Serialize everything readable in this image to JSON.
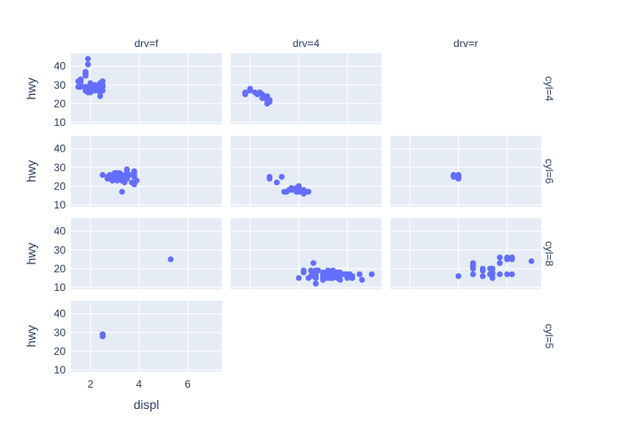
{
  "chart_data": {
    "type": "scatter",
    "xlabel": "displ",
    "ylabel": "hwy",
    "xlim": [
      1.2,
      7.4
    ],
    "ylim": [
      9,
      47
    ],
    "x_ticks": [
      2,
      4,
      6
    ],
    "y_ticks": [
      10,
      20,
      30,
      40
    ],
    "grid": true,
    "marker_color": "#636efa",
    "plot_bg": "#e5ecf6",
    "columns": [
      "drv=f",
      "drv=4",
      "drv=r"
    ],
    "rows": [
      "cyl=4",
      "cyl=6",
      "cyl=8",
      "cyl=5"
    ],
    "panels": [
      {
        "row": 0,
        "col": 0,
        "points": [
          [
            1.8,
            29
          ],
          [
            1.8,
            29
          ],
          [
            2.0,
            31
          ],
          [
            2.0,
            30
          ],
          [
            1.9,
            44
          ],
          [
            1.9,
            41
          ],
          [
            2.0,
            29
          ],
          [
            2.0,
            26
          ],
          [
            2.2,
            27
          ],
          [
            2.4,
            30
          ],
          [
            2.5,
            29
          ],
          [
            2.4,
            24
          ],
          [
            1.6,
            33
          ],
          [
            1.6,
            32
          ],
          [
            1.8,
            36
          ],
          [
            1.8,
            35
          ],
          [
            1.8,
            37
          ],
          [
            1.6,
            30
          ],
          [
            1.6,
            29
          ],
          [
            1.8,
            27
          ],
          [
            2.0,
            28
          ],
          [
            2.2,
            30
          ],
          [
            2.4,
            26
          ],
          [
            2.5,
            27
          ],
          [
            2.4,
            31
          ],
          [
            2.5,
            32
          ],
          [
            1.5,
            32
          ],
          [
            1.5,
            29
          ],
          [
            1.9,
            26
          ],
          [
            2.0,
            27
          ],
          [
            2.2,
            29
          ],
          [
            2.3,
            28
          ],
          [
            2.4,
            28
          ],
          [
            2.5,
            29
          ],
          [
            2.5,
            30
          ],
          [
            2.0,
            30
          ]
        ]
      },
      {
        "row": 0,
        "col": 1,
        "points": [
          [
            1.8,
            26
          ],
          [
            1.8,
            25
          ],
          [
            2.0,
            28
          ],
          [
            2.0,
            27
          ],
          [
            2.2,
            26
          ],
          [
            2.4,
            26
          ],
          [
            2.5,
            25
          ],
          [
            2.7,
            24
          ],
          [
            2.7,
            22
          ],
          [
            2.7,
            20
          ],
          [
            2.8,
            21
          ],
          [
            2.8,
            22
          ],
          [
            2.5,
            23
          ],
          [
            2.3,
            25
          ]
        ]
      },
      {
        "row": 0,
        "col": 2,
        "points": []
      },
      {
        "row": 1,
        "col": 0,
        "points": [
          [
            2.8,
            26
          ],
          [
            2.8,
            25
          ],
          [
            3.1,
            27
          ],
          [
            3.3,
            26
          ],
          [
            3.3,
            24
          ],
          [
            3.5,
            26
          ],
          [
            3.6,
            26
          ],
          [
            3.8,
            26
          ],
          [
            3.8,
            28
          ],
          [
            3.8,
            25
          ],
          [
            3.3,
            17
          ],
          [
            3.5,
            29
          ],
          [
            3.3,
            23
          ],
          [
            3.4,
            22
          ],
          [
            3.0,
            26
          ],
          [
            2.5,
            26
          ],
          [
            3.0,
            25
          ],
          [
            3.1,
            26
          ],
          [
            3.5,
            28
          ],
          [
            3.8,
            27
          ],
          [
            3.9,
            23
          ],
          [
            3.1,
            23
          ],
          [
            2.7,
            24
          ],
          [
            2.9,
            23
          ],
          [
            3.0,
            27
          ],
          [
            3.2,
            27
          ],
          [
            3.4,
            25
          ],
          [
            3.5,
            24
          ],
          [
            3.7,
            22
          ],
          [
            3.8,
            21
          ],
          [
            2.7,
            25
          ],
          [
            3.1,
            24
          ],
          [
            3.3,
            25
          ]
        ]
      },
      {
        "row": 1,
        "col": 1,
        "points": [
          [
            2.8,
            25
          ],
          [
            2.8,
            24
          ],
          [
            3.1,
            22
          ],
          [
            3.3,
            25
          ],
          [
            3.7,
            19
          ],
          [
            3.7,
            18
          ],
          [
            3.9,
            17
          ],
          [
            4.0,
            17
          ],
          [
            4.0,
            20
          ],
          [
            4.2,
            18
          ],
          [
            4.3,
            17
          ],
          [
            4.4,
            17
          ],
          [
            3.4,
            17
          ],
          [
            3.6,
            18
          ],
          [
            4.0,
            19
          ],
          [
            4.2,
            16
          ],
          [
            4.0,
            18
          ],
          [
            3.9,
            19
          ],
          [
            3.5,
            17
          ],
          [
            4.0,
            20
          ]
        ]
      },
      {
        "row": 1,
        "col": 2,
        "points": [
          [
            3.8,
            26
          ],
          [
            3.8,
            25
          ],
          [
            4.0,
            26
          ],
          [
            4.0,
            25
          ],
          [
            4.0,
            24
          ],
          [
            3.9,
            25
          ]
        ]
      },
      {
        "row": 2,
        "col": 0,
        "points": [
          [
            5.3,
            25
          ]
        ]
      },
      {
        "row": 2,
        "col": 1,
        "points": [
          [
            4.6,
            23
          ],
          [
            4.5,
            19
          ],
          [
            4.7,
            18
          ],
          [
            4.7,
            19
          ],
          [
            5.2,
            17
          ],
          [
            5.2,
            15
          ],
          [
            5.7,
            17
          ],
          [
            5.9,
            17
          ],
          [
            4.7,
            16
          ],
          [
            4.7,
            17
          ],
          [
            5.3,
            16
          ],
          [
            5.3,
            17
          ],
          [
            5.4,
            15
          ],
          [
            5.4,
            17
          ],
          [
            4.6,
            17
          ],
          [
            5.4,
            16
          ],
          [
            5.0,
            17
          ],
          [
            5.0,
            18
          ],
          [
            6.1,
            17
          ],
          [
            6.5,
            17
          ],
          [
            5.6,
            18
          ],
          [
            5.0,
            15
          ],
          [
            4.7,
            12
          ],
          [
            5.7,
            14
          ],
          [
            5.2,
            19
          ],
          [
            5.9,
            17
          ],
          [
            4.7,
            19
          ],
          [
            4.4,
            15
          ],
          [
            4.8,
            19
          ],
          [
            5.4,
            19
          ],
          [
            4.2,
            18
          ],
          [
            5.7,
            16
          ],
          [
            6.0,
            15
          ],
          [
            5.2,
            18
          ],
          [
            6.2,
            16
          ],
          [
            6.2,
            15
          ],
          [
            6.0,
            17
          ],
          [
            5.5,
            18
          ],
          [
            5.0,
            16
          ],
          [
            5.6,
            15
          ],
          [
            6.6,
            14
          ],
          [
            4.6,
            18
          ],
          [
            4.0,
            15
          ],
          [
            4.5,
            16
          ],
          [
            5.0,
            14
          ],
          [
            5.4,
            18
          ],
          [
            5.5,
            17
          ],
          [
            4.2,
            19
          ],
          [
            5.2,
            16
          ],
          [
            4.7,
            15
          ],
          [
            5.0,
            16
          ],
          [
            5.7,
            18
          ],
          [
            4.6,
            17
          ],
          [
            5.4,
            18
          ],
          [
            4.7,
            15
          ],
          [
            5.0,
            15
          ],
          [
            5.3,
            15
          ],
          [
            7.0,
            17
          ],
          [
            4.7,
            17
          ]
        ]
      },
      {
        "row": 2,
        "col": 2,
        "points": [
          [
            5.3,
            20
          ],
          [
            5.3,
            17
          ],
          [
            5.7,
            26
          ],
          [
            6.2,
            26
          ],
          [
            6.2,
            25
          ],
          [
            7.0,
            24
          ],
          [
            5.4,
            20
          ],
          [
            5.4,
            15
          ],
          [
            4.6,
            23
          ],
          [
            4.6,
            22
          ],
          [
            5.4,
            18
          ],
          [
            4.0,
            16
          ],
          [
            5.0,
            19
          ],
          [
            5.0,
            20
          ],
          [
            6.0,
            25
          ],
          [
            6.0,
            26
          ],
          [
            4.6,
            20
          ],
          [
            5.7,
            17
          ],
          [
            6.2,
            17
          ],
          [
            4.6,
            21
          ],
          [
            5.7,
            23
          ],
          [
            5.4,
            17
          ],
          [
            5.0,
            16
          ],
          [
            4.6,
            17
          ],
          [
            6.0,
            17
          ]
        ]
      },
      {
        "row": 3,
        "col": 0,
        "points": [
          [
            2.5,
            28
          ],
          [
            2.5,
            29
          ],
          [
            2.5,
            29
          ],
          [
            2.5,
            28
          ],
          [
            2.5,
            29
          ]
        ]
      }
    ]
  }
}
